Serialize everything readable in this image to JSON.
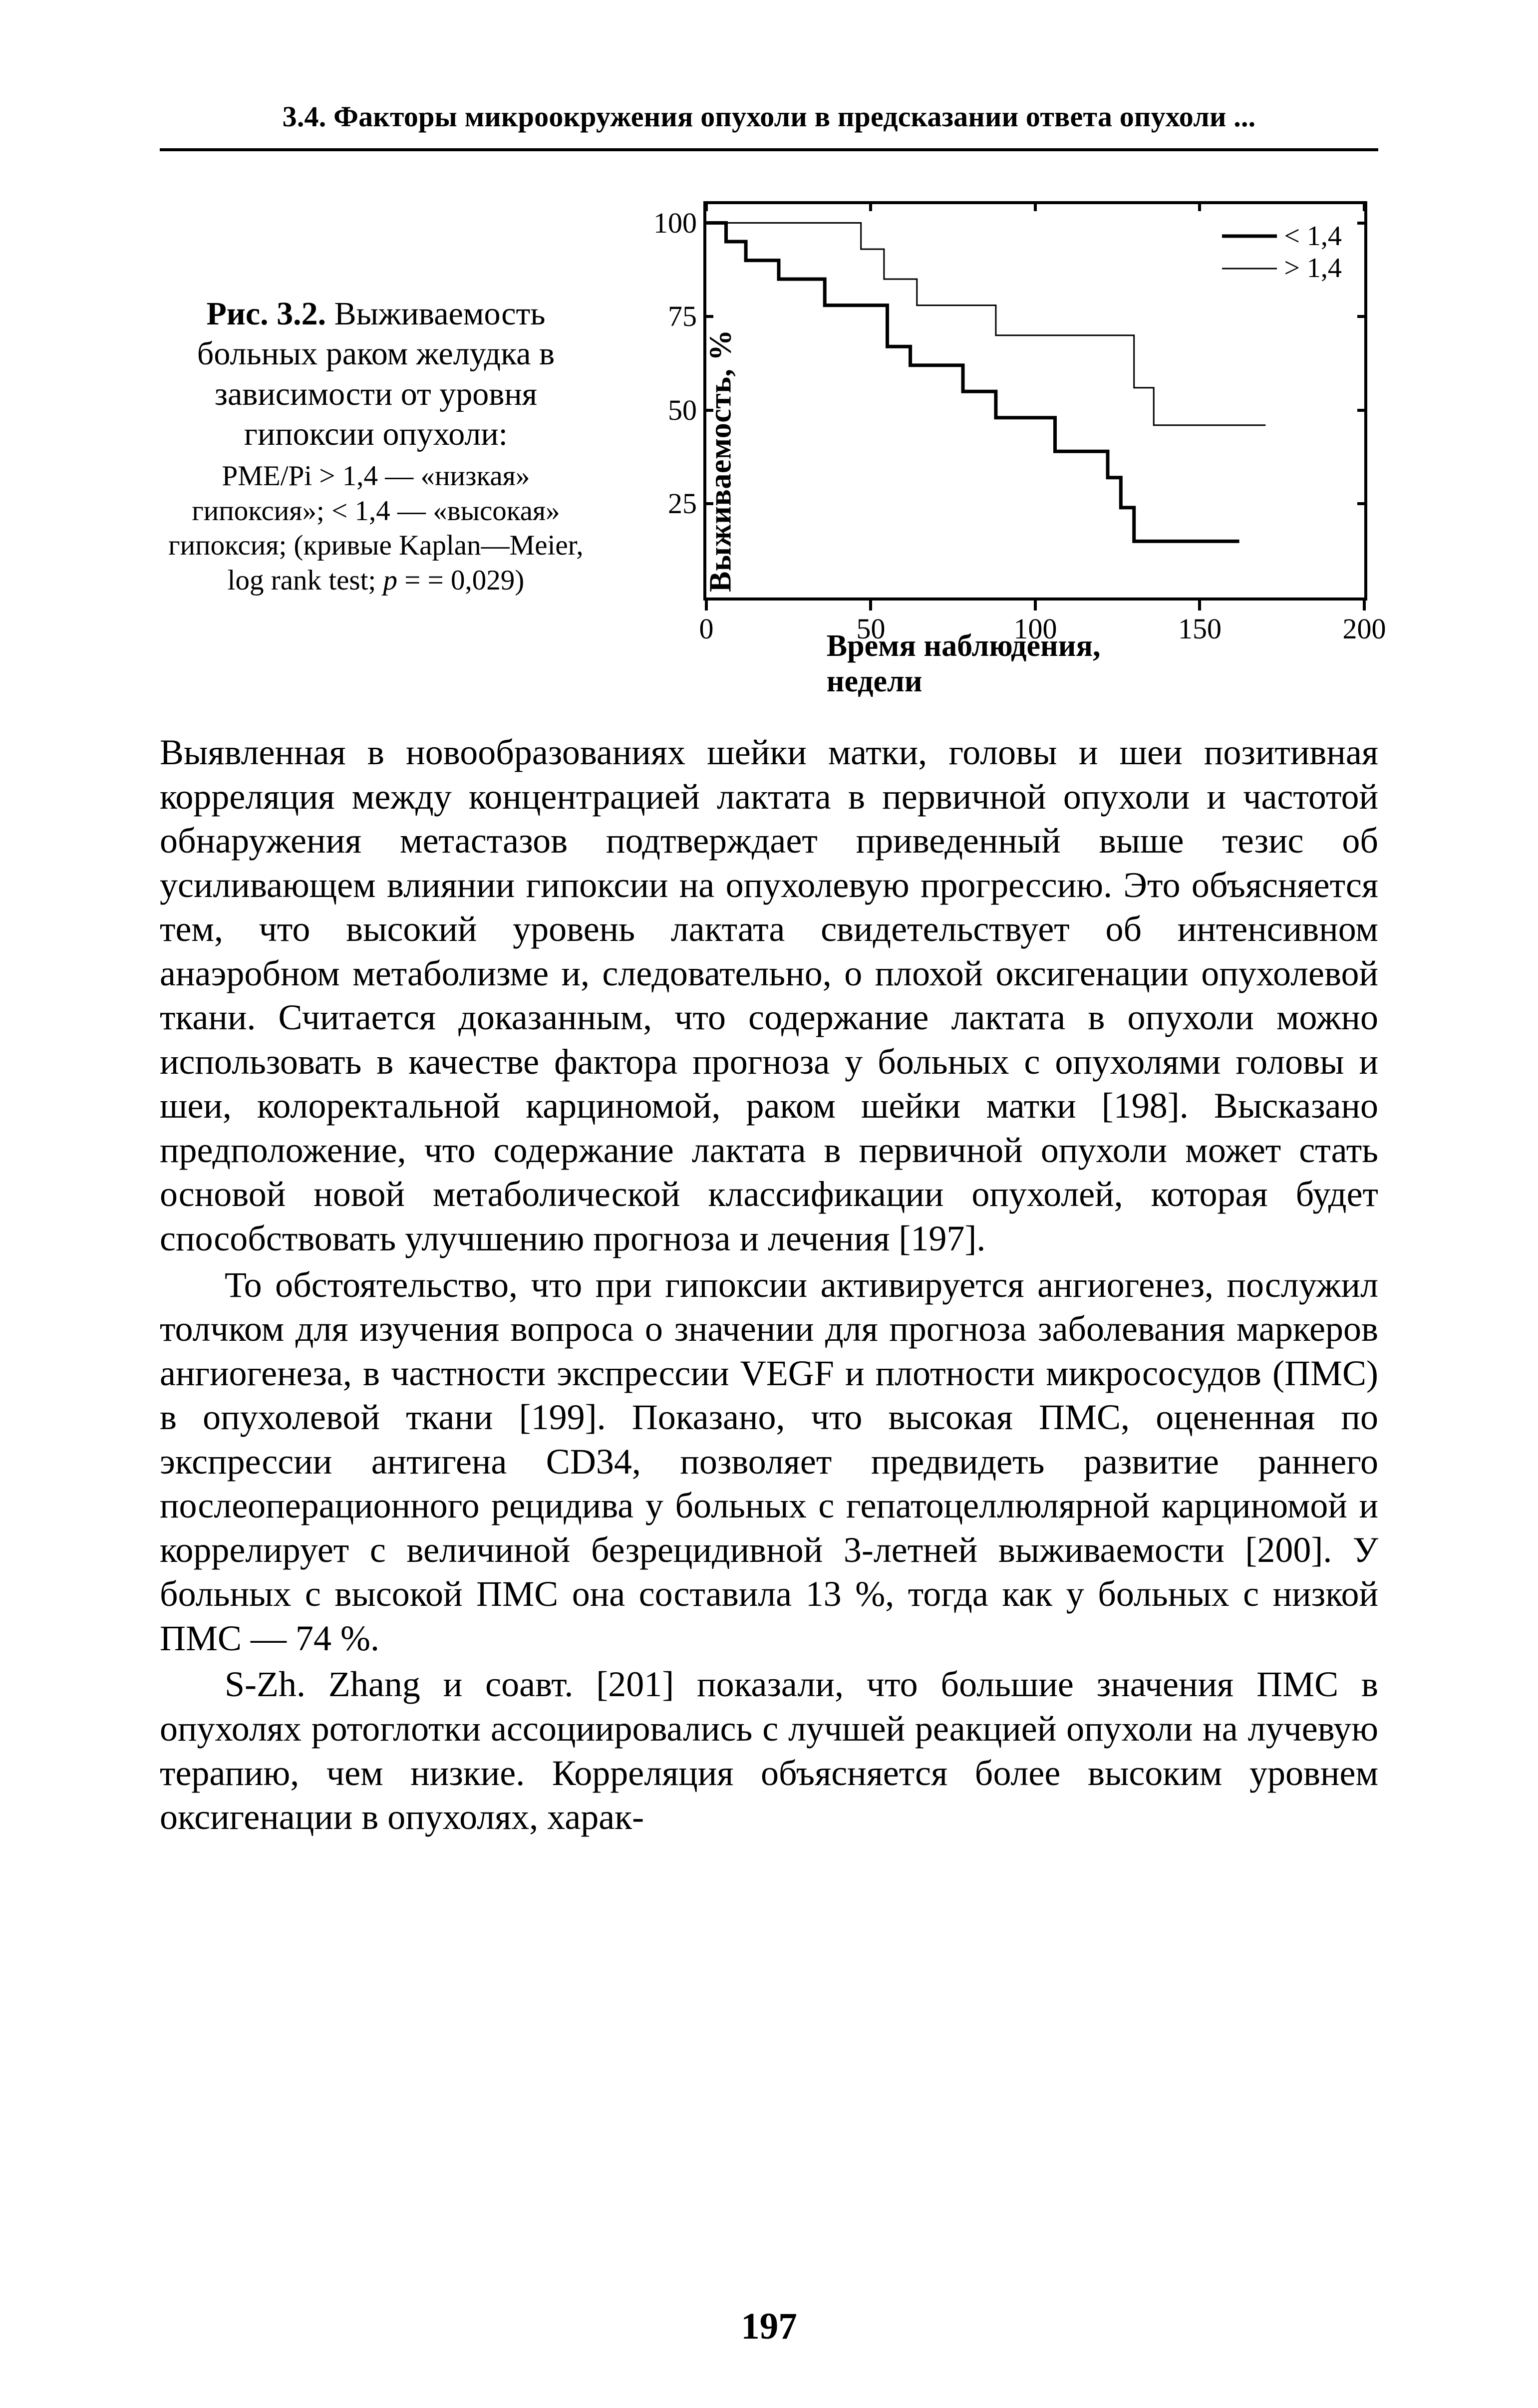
{
  "running_head": "3.4. Факторы микроокружения опухоли в предсказании ответа опухоли ...",
  "figure": {
    "caption_label": "Рис. 3.2.",
    "caption_title": "Выживаемость больных раком желудка в зависимости от уровня гипоксии опухоли:",
    "caption_sub": "PME/Pi > 1,4 — «низкая» гипоксия»; < 1,4 — «высо­кая» гипоксия; (кривые Kap­lan—Meier, log rank test; p = = 0,029)",
    "p_value": "0,029",
    "y_axis_label": "Выживаемость, %",
    "x_axis_label": "Время наблюдения, недели",
    "y_ticks": [
      25,
      50,
      75,
      100
    ],
    "x_ticks": [
      0,
      50,
      100,
      150,
      200
    ],
    "xlim": [
      0,
      200
    ],
    "ylim": [
      0,
      105
    ],
    "legend": {
      "series1": {
        "label": "< 1,4",
        "line_width": 7
      },
      "series2": {
        "label": "> 1,4",
        "line_width": 3
      }
    },
    "series1": {
      "name": "< 1,4 (высокая гипоксия)",
      "line_width": 7,
      "color": "#000000",
      "points": [
        [
          0,
          100
        ],
        [
          6,
          100
        ],
        [
          6,
          95
        ],
        [
          12,
          95
        ],
        [
          12,
          90
        ],
        [
          22,
          90
        ],
        [
          22,
          85
        ],
        [
          36,
          85
        ],
        [
          36,
          78
        ],
        [
          55,
          78
        ],
        [
          55,
          67
        ],
        [
          62,
          67
        ],
        [
          62,
          62
        ],
        [
          78,
          62
        ],
        [
          78,
          55
        ],
        [
          88,
          55
        ],
        [
          88,
          48
        ],
        [
          106,
          48
        ],
        [
          106,
          39
        ],
        [
          122,
          39
        ],
        [
          122,
          32
        ],
        [
          126,
          32
        ],
        [
          126,
          24
        ],
        [
          130,
          24
        ],
        [
          130,
          15
        ],
        [
          162,
          15
        ]
      ]
    },
    "series2": {
      "name": "> 1,4 (низкая гипоксия)",
      "line_width": 3,
      "color": "#000000",
      "points": [
        [
          0,
          100
        ],
        [
          47,
          100
        ],
        [
          47,
          93
        ],
        [
          54,
          93
        ],
        [
          54,
          85
        ],
        [
          64,
          85
        ],
        [
          64,
          78
        ],
        [
          88,
          78
        ],
        [
          88,
          70
        ],
        [
          130,
          70
        ],
        [
          130,
          56
        ],
        [
          136,
          56
        ],
        [
          136,
          46
        ],
        [
          170,
          46
        ]
      ]
    },
    "background_color": "#ffffff",
    "axis_color": "#000000",
    "tick_fontsize": 58,
    "label_fontsize": 62
  },
  "paragraphs": {
    "p1": "Выявленная в новообразованиях шейки матки, головы и шеи позитивная корреляция между концентрацией лактата в первич­ной опухоли и частотой обнаружения метастазов подтверждает приведенный выше тезис об усиливающем влиянии гипоксии на опухолевую прогрессию. Это объясняется тем, что высокий уро­вень лактата свидетельствует об интенсивном анаэробном мета­болизме и, следовательно, о плохой оксигенации опухолевой ткани. Считается доказанным, что содержание лактата в опухоли можно использовать в качестве фактора прогноза у больных с опухолями головы и шеи, колоректальной карциномой, раком шейки матки [198]. Высказано предположение, что содержание лактата в первичной опухоли может стать основой новой мета­болической классификации опухолей, которая будет способство­вать улучшению прогноза и лечения [197].",
    "p2": "То обстоятельство, что при гипоксии активируется ангиоге­нез, послужил толчком для изучения вопроса о значении для прогноза заболевания маркеров ангиогенеза, в частности экс­прессии VEGF и плотности микрососудов (ПМС) в опухолевой ткани [199]. Показано, что высокая ПМС, оцененная по экс­прессии антигена CD34, позволяет предвидеть развитие раннего послеоперационного рецидива у больных с гепатоцеллюлярной карциномой и коррелирует с величиной безрецидивной 3-летней выживаемости [200]. У больных с высокой ПМС она составила 13 %, тогда как у больных с низкой ПМС — 74 %.",
    "p3": "S-Zh. Zhang и соавт. [201] показали, что большие значения ПМС в опухолях ротоглотки ассоциировались с лучшей реакци­ей опухоли на лучевую терапию, чем низкие. Корреляция объяс­няется более высоким уровнем оксигенации в опухолях, харак-"
  },
  "page_number": "197"
}
